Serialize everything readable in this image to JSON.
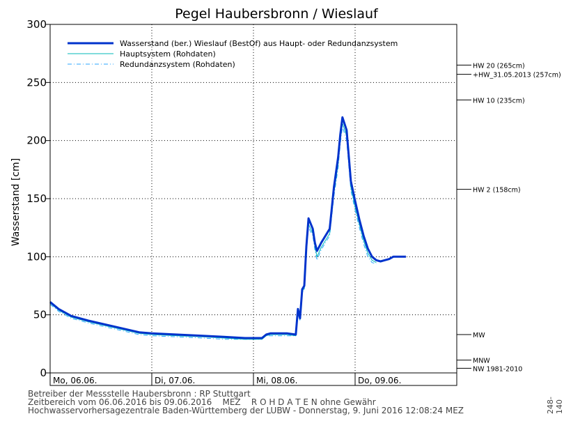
{
  "chart_data": {
    "type": "line",
    "title": "Pegel Haubersbronn / Wieslauf",
    "ylabel": "Wasserstand [cm]",
    "xlabel": "",
    "ylim": [
      0,
      300
    ],
    "yticks": [
      0,
      50,
      100,
      150,
      200,
      250,
      300
    ],
    "xlim": [
      "06.06.2016 00:00",
      "10.06.2016 00:00"
    ],
    "day_labels": [
      "Mo, 06.06.",
      "Di, 07.06.",
      "Mi, 08.06.",
      "Do, 09.06."
    ],
    "grid": true,
    "legend_position": "top-left",
    "thresholds": [
      {
        "label": "HW 20 (265cm)",
        "value": 265
      },
      {
        "label": "+HW_31.05.2013 (257cm)",
        "value": 257
      },
      {
        "label": "HW 10 (235cm)",
        "value": 235
      },
      {
        "label": "HW 2 (158cm)",
        "value": 158
      },
      {
        "label": "MW",
        "value": 33
      },
      {
        "label": "MNW",
        "value": 11
      },
      {
        "label": "NW 1981-2010",
        "value": 4
      }
    ],
    "series": [
      {
        "name": "Wasserstand (ber.) Wieslauf  (BestOf) aus Haupt- oder Redundanzsystem",
        "color": "#0033cc",
        "style": "thick",
        "x": [
          "06.06.2016 00:00",
          "06.06.2016 02:00",
          "06.06.2016 05:00",
          "06.06.2016 09:00",
          "06.06.2016 15:00",
          "06.06.2016 21:00",
          "07.06.2016 00:00",
          "07.06.2016 06:00",
          "07.06.2016 12:00",
          "07.06.2016 17:00",
          "07.06.2016 22:00",
          "08.06.2016 00:00",
          "08.06.2016 02:00",
          "08.06.2016 03:00",
          "08.06.2016 04:00",
          "08.06.2016 08:00",
          "08.06.2016 10:00",
          "08.06.2016 10:30",
          "08.06.2016 11:00",
          "08.06.2016 11:30",
          "08.06.2016 12:00",
          "08.06.2016 12:30",
          "08.06.2016 13:00",
          "08.06.2016 14:00",
          "08.06.2016 14:30",
          "08.06.2016 15:00",
          "08.06.2016 16:00",
          "08.06.2016 18:00",
          "08.06.2016 19:00",
          "08.06.2016 20:00",
          "08.06.2016 20:30",
          "08.06.2016 21:00",
          "08.06.2016 22:00",
          "08.06.2016 23:00",
          "09.06.2016 00:00",
          "09.06.2016 01:00",
          "09.06.2016 02:00",
          "09.06.2016 03:00",
          "09.06.2016 04:00",
          "09.06.2016 05:00",
          "09.06.2016 06:00",
          "09.06.2016 07:00",
          "09.06.2016 08:00",
          "09.06.2016 09:00",
          "09.06.2016 10:00",
          "09.06.2016 11:00",
          "09.06.2016 12:00"
        ],
        "values": [
          61,
          55,
          49,
          45,
          40,
          35,
          34,
          33,
          32,
          31,
          30,
          30,
          30,
          33,
          34,
          34,
          33,
          55,
          47,
          72,
          75,
          109,
          133,
          124,
          112,
          105,
          112,
          124,
          160,
          186,
          205,
          220,
          209,
          165,
          148,
          132,
          118,
          107,
          100,
          97,
          96,
          97,
          98,
          100,
          100,
          100,
          100
        ]
      },
      {
        "name": "Hauptsystem (Rohdaten)",
        "color": "#00b8b8",
        "style": "thin",
        "x": [
          "06.06.2016 00:00",
          "06.06.2016 02:00",
          "06.06.2016 05:00",
          "06.06.2016 09:00",
          "06.06.2016 15:00",
          "06.06.2016 21:00",
          "07.06.2016 00:00",
          "07.06.2016 06:00",
          "07.06.2016 12:00",
          "07.06.2016 17:00",
          "07.06.2016 22:00",
          "08.06.2016 00:00",
          "08.06.2016 02:00",
          "08.06.2016 03:00",
          "08.06.2016 04:00",
          "08.06.2016 08:00",
          "08.06.2016 10:00",
          "08.06.2016 10:30",
          "08.06.2016 11:00",
          "08.06.2016 11:30",
          "08.06.2016 12:00",
          "08.06.2016 12:30",
          "08.06.2016 13:00",
          "08.06.2016 14:00",
          "08.06.2016 14:30",
          "08.06.2016 15:00",
          "08.06.2016 16:00",
          "08.06.2016 18:00",
          "08.06.2016 19:00",
          "08.06.2016 20:00",
          "08.06.2016 20:30",
          "08.06.2016 21:00",
          "08.06.2016 22:00",
          "08.06.2016 23:00",
          "09.06.2016 00:00",
          "09.06.2016 01:00",
          "09.06.2016 02:00",
          "09.06.2016 03:00",
          "09.06.2016 04:00",
          "09.06.2016 05:00"
        ],
        "values": [
          60,
          54,
          48,
          44,
          39,
          34,
          33,
          32,
          31,
          30,
          29,
          29,
          29,
          32,
          33,
          33,
          32,
          53,
          46,
          70,
          73,
          106,
          128,
          120,
          109,
          100,
          108,
          120,
          155,
          180,
          200,
          215,
          204,
          160,
          143,
          128,
          114,
          103,
          97,
          95
        ]
      },
      {
        "name": "Redundanzsystem (Rohdaten)",
        "color": "#2aa6ff",
        "style": "dashdot",
        "x": [
          "06.06.2016 00:00",
          "06.06.2016 02:00",
          "06.06.2016 05:00",
          "06.06.2016 09:00",
          "06.06.2016 15:00",
          "06.06.2016 21:00",
          "07.06.2016 00:00",
          "07.06.2016 06:00",
          "07.06.2016 12:00",
          "07.06.2016 17:00",
          "07.06.2016 22:00",
          "08.06.2016 00:00",
          "08.06.2016 02:00",
          "08.06.2016 03:00",
          "08.06.2016 04:00",
          "08.06.2016 08:00",
          "08.06.2016 10:00",
          "08.06.2016 10:30",
          "08.06.2016 11:00",
          "08.06.2016 11:30",
          "08.06.2016 12:00",
          "08.06.2016 12:30",
          "08.06.2016 13:00",
          "08.06.2016 14:00",
          "08.06.2016 14:30",
          "08.06.2016 15:00",
          "08.06.2016 16:00",
          "08.06.2016 18:00",
          "08.06.2016 19:00",
          "08.06.2016 20:00",
          "08.06.2016 20:30",
          "08.06.2016 21:00",
          "08.06.2016 22:00",
          "08.06.2016 23:00",
          "09.06.2016 00:00",
          "09.06.2016 01:00",
          "09.06.2016 02:00",
          "09.06.2016 03:00",
          "09.06.2016 04:00",
          "09.06.2016 05:00"
        ],
        "values": [
          59,
          53,
          47,
          43,
          38,
          33,
          32,
          31,
          30,
          29,
          29,
          29,
          29,
          32,
          32,
          32,
          32,
          52,
          45,
          69,
          72,
          104,
          125,
          118,
          106,
          97,
          106,
          118,
          152,
          177,
          197,
          212,
          200,
          157,
          140,
          125,
          111,
          100,
          95,
          94
        ]
      }
    ]
  },
  "footer": {
    "line1": "Betreiber der Messstelle Haubersbronn : RP Stuttgart",
    "line2": "Zeitbereich vom 06.06.2016 bis 09.06.2016    MEZ    R O H D A T E N ohne Gewähr",
    "line3": "Hochwasservorhersagezentrale Baden-Württemberg der LUBW - Donnerstag, 9. Juni 2016 12:08:24 MEZ",
    "code": "248-140"
  }
}
